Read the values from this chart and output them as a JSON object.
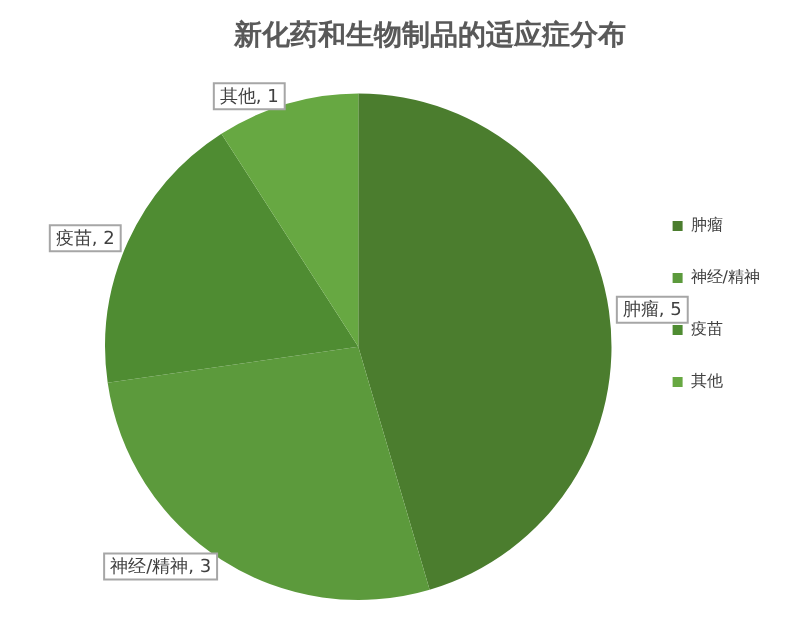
{
  "chart_data": {
    "type": "pie",
    "title": "新化药和生物制品的适应症分布",
    "categories": [
      "肿瘤",
      "神经/精神",
      "疫苗",
      "其他"
    ],
    "values": [
      5,
      3,
      2,
      1
    ],
    "colors": [
      "#4b7d2e",
      "#5c9a3c",
      "#4f8c32",
      "#67a842"
    ],
    "value_labels": [
      "肿瘤, 5",
      "神经/精神, 3",
      "疫苗, 2",
      "其他, 1"
    ],
    "legend": "right"
  }
}
